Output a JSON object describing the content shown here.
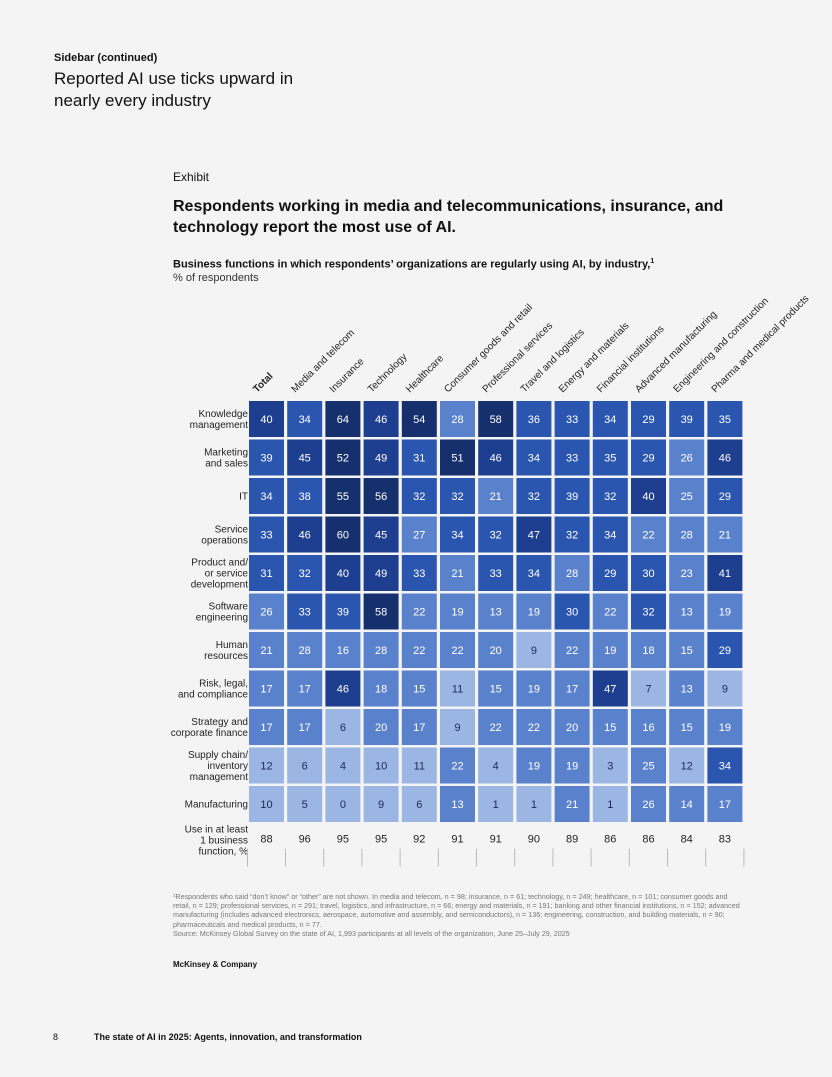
{
  "sidebar": {
    "label": "Sidebar (continued)",
    "title": "Reported AI use ticks upward in nearly every industry"
  },
  "exhibit": {
    "label": "Exhibit",
    "headline": "Respondents working in media and telecommunications, insurance, and technology report the most use of AI.",
    "subtitle": "Business functions in which respondents’ organizations are regularly using AI, by industry,",
    "subtitle_footnote_mark": "1",
    "unit": "% of respondents"
  },
  "chart_data": {
    "type": "heatmap",
    "title": "Business functions in which respondents’ organizations are regularly using AI, by industry",
    "unit": "% of respondents",
    "columns": [
      "Total",
      "Media and telecom",
      "Insurance",
      "Technology",
      "Healthcare",
      "Consumer goods and retail",
      "Professional services",
      "Travel and logistics",
      "Energy and materials",
      "Financial institutions",
      "Advanced manufacturing",
      "Engineering and construction",
      "Pharma and medical products"
    ],
    "rows": [
      {
        "label": "Knowledge management",
        "label_lines": [
          "Knowledge",
          "management"
        ],
        "values": [
          40,
          34,
          64,
          46,
          54,
          28,
          58,
          36,
          33,
          34,
          29,
          39,
          35
        ]
      },
      {
        "label": "Marketing and sales",
        "label_lines": [
          "Marketing",
          "and sales"
        ],
        "values": [
          39,
          45,
          52,
          49,
          31,
          51,
          46,
          34,
          33,
          35,
          29,
          26,
          46
        ]
      },
      {
        "label": "IT",
        "label_lines": [
          "IT"
        ],
        "values": [
          34,
          38,
          55,
          56,
          32,
          32,
          21,
          32,
          39,
          32,
          40,
          25,
          29
        ]
      },
      {
        "label": "Service operations",
        "label_lines": [
          "Service",
          "operations"
        ],
        "values": [
          33,
          46,
          60,
          45,
          27,
          34,
          32,
          47,
          32,
          34,
          22,
          28,
          21
        ]
      },
      {
        "label": "Product and/or service development",
        "label_lines": [
          "Product and/",
          "or service",
          "development"
        ],
        "values": [
          31,
          32,
          40,
          49,
          33,
          21,
          33,
          34,
          28,
          29,
          30,
          23,
          41
        ]
      },
      {
        "label": "Software engineering",
        "label_lines": [
          "Software",
          "engineering"
        ],
        "values": [
          26,
          33,
          39,
          58,
          22,
          19,
          13,
          19,
          30,
          22,
          32,
          13,
          19
        ]
      },
      {
        "label": "Human resources",
        "label_lines": [
          "Human",
          "resources"
        ],
        "values": [
          21,
          28,
          16,
          28,
          22,
          22,
          20,
          9,
          22,
          19,
          18,
          15,
          29
        ]
      },
      {
        "label": "Risk, legal, and compliance",
        "label_lines": [
          "Risk, legal,",
          "and compliance"
        ],
        "values": [
          17,
          17,
          46,
          18,
          15,
          11,
          15,
          19,
          17,
          47,
          7,
          13,
          9
        ]
      },
      {
        "label": "Strategy and corporate finance",
        "label_lines": [
          "Strategy and",
          "corporate finance"
        ],
        "values": [
          17,
          17,
          6,
          20,
          17,
          9,
          22,
          22,
          20,
          15,
          16,
          15,
          19
        ]
      },
      {
        "label": "Supply chain/inventory management",
        "label_lines": [
          "Supply chain/",
          "inventory",
          "management"
        ],
        "values": [
          12,
          6,
          4,
          10,
          11,
          22,
          4,
          19,
          19,
          3,
          25,
          12,
          34
        ]
      },
      {
        "label": "Manufacturing",
        "label_lines": [
          "Manufacturing"
        ],
        "values": [
          10,
          5,
          0,
          9,
          6,
          13,
          1,
          1,
          21,
          1,
          26,
          14,
          17
        ]
      }
    ],
    "total_row": {
      "label": "Use in at least 1 business function, %",
      "label_lines": [
        "Use in at least",
        "1 business",
        "function, %"
      ],
      "values": [
        88,
        96,
        95,
        95,
        92,
        91,
        91,
        90,
        89,
        86,
        86,
        84,
        83
      ]
    },
    "colors": {
      "darkest": "#16306e",
      "dark": "#1e3f8f",
      "mid": "#2b56b0",
      "light": "#5a82cc",
      "lightest": "#9cb6e3",
      "text_light": "#ffffff",
      "text_dark": "#1a2a55"
    }
  },
  "footnote": "¹Respondents who said “don’t know” or “other” are not shown. In media and telecom, n = 98; insurance, n = 61; technology, n = 249; healthcare, n = 101; consumer goods and retail, n = 129; professional services, n = 291; travel, logistics, and infrastructure, n = 66; energy and materials, n = 191; banking and other financial institutions, n = 152; advanced manufacturing (includes advanced electronics, aerospace, automotive and assembly, and semiconductors), n = 136; engineering, construction, and building materials, n = 90; pharmaceuticals and medical products, n = 77.",
  "source": "Source: McKinsey Global Survey on the state of AI, 1,993 participants at all levels of the organization, June 25–July 29, 2025",
  "brand": "McKinsey & Company",
  "footer": {
    "page_number": "8",
    "report_title": "The state of AI in 2025: Agents, innovation, and transformation"
  }
}
